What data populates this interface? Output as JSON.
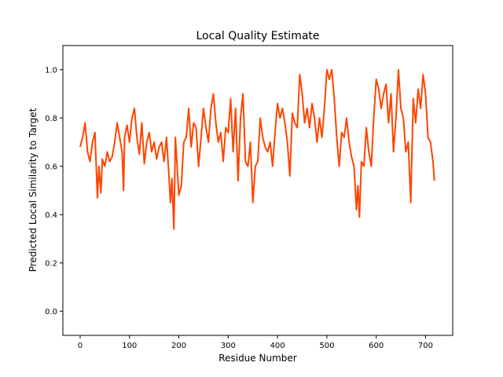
{
  "chart_data": {
    "type": "line",
    "title": "Local Quality Estimate",
    "xlabel": "Residue Number",
    "ylabel": "Predicted Local Similarity to Target",
    "xlim": [
      -35,
      755
    ],
    "ylim": [
      -0.1,
      1.1
    ],
    "xticks": [
      0,
      100,
      200,
      300,
      400,
      500,
      600,
      700
    ],
    "yticks": [
      0.0,
      0.2,
      0.4,
      0.6,
      0.8,
      1.0
    ],
    "ytick_labels": [
      "0.0",
      "0.2",
      "0.4",
      "0.6",
      "0.8",
      "1.0"
    ],
    "grid": false,
    "series": [
      {
        "color": "#ff4500",
        "x": [
          0,
          5,
          10,
          15,
          20,
          25,
          30,
          35,
          38,
          42,
          45,
          50,
          55,
          60,
          65,
          70,
          75,
          80,
          85,
          88,
          90,
          95,
          100,
          105,
          110,
          115,
          120,
          125,
          130,
          135,
          140,
          145,
          150,
          155,
          160,
          165,
          170,
          175,
          180,
          183,
          186,
          190,
          193,
          196,
          200,
          205,
          210,
          215,
          220,
          225,
          230,
          235,
          240,
          245,
          250,
          255,
          260,
          265,
          270,
          275,
          280,
          285,
          290,
          295,
          300,
          305,
          310,
          315,
          320,
          325,
          330,
          335,
          340,
          345,
          350,
          355,
          360,
          365,
          370,
          375,
          380,
          385,
          390,
          395,
          400,
          405,
          410,
          415,
          420,
          425,
          430,
          435,
          440,
          445,
          450,
          455,
          460,
          465,
          470,
          475,
          480,
          485,
          490,
          495,
          500,
          505,
          510,
          515,
          520,
          525,
          530,
          535,
          540,
          545,
          550,
          555,
          560,
          563,
          566,
          570,
          575,
          580,
          585,
          590,
          595,
          600,
          605,
          610,
          615,
          620,
          625,
          630,
          635,
          640,
          645,
          650,
          655,
          660,
          665,
          670,
          675,
          680,
          685,
          690,
          695,
          700,
          705,
          710,
          715,
          718
        ],
        "y": [
          0.68,
          0.72,
          0.78,
          0.66,
          0.62,
          0.7,
          0.74,
          0.47,
          0.6,
          0.49,
          0.63,
          0.6,
          0.66,
          0.62,
          0.64,
          0.7,
          0.78,
          0.72,
          0.66,
          0.5,
          0.72,
          0.77,
          0.7,
          0.8,
          0.84,
          0.72,
          0.65,
          0.78,
          0.61,
          0.7,
          0.74,
          0.66,
          0.7,
          0.63,
          0.68,
          0.7,
          0.62,
          0.72,
          0.56,
          0.45,
          0.55,
          0.34,
          0.72,
          0.62,
          0.48,
          0.52,
          0.7,
          0.72,
          0.84,
          0.68,
          0.78,
          0.76,
          0.6,
          0.72,
          0.84,
          0.76,
          0.7,
          0.84,
          0.9,
          0.78,
          0.7,
          0.74,
          0.62,
          0.76,
          0.74,
          0.88,
          0.66,
          0.84,
          0.54,
          0.8,
          0.9,
          0.62,
          0.6,
          0.7,
          0.45,
          0.6,
          0.62,
          0.8,
          0.72,
          0.68,
          0.66,
          0.7,
          0.6,
          0.74,
          0.86,
          0.8,
          0.84,
          0.78,
          0.7,
          0.56,
          0.82,
          0.78,
          0.76,
          0.98,
          0.9,
          0.78,
          0.84,
          0.76,
          0.86,
          0.8,
          0.7,
          0.8,
          0.72,
          0.84,
          1.0,
          0.96,
          1.0,
          0.88,
          0.72,
          0.6,
          0.74,
          0.72,
          0.8,
          0.7,
          0.64,
          0.6,
          0.42,
          0.52,
          0.39,
          0.62,
          0.6,
          0.76,
          0.66,
          0.6,
          0.8,
          0.96,
          0.92,
          0.84,
          0.9,
          0.94,
          0.78,
          0.9,
          0.66,
          0.8,
          1.0,
          0.84,
          0.8,
          0.66,
          0.7,
          0.45,
          0.88,
          0.78,
          0.92,
          0.84,
          0.98,
          0.9,
          0.72,
          0.7,
          0.62,
          0.54
        ]
      }
    ]
  }
}
